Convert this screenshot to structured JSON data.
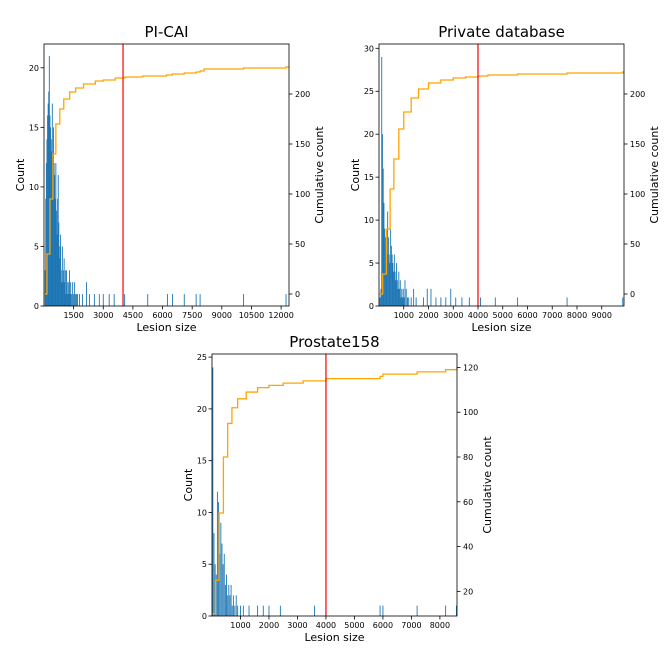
{
  "colors": {
    "bars": "#1f77b4",
    "cumulative": "#ffa500",
    "threshold": "#ff0000",
    "axis": "#000000"
  },
  "chart_data": [
    {
      "type": "bar",
      "title": "PI-CAI",
      "xlabel": "Lesion size",
      "ylabel": "Count",
      "y2label": "Cumulative count",
      "xlim": [
        0,
        12400
      ],
      "ylim": [
        0,
        22
      ],
      "y2lim": [
        -12,
        250
      ],
      "xticks": [
        1500,
        3000,
        4500,
        6000,
        7500,
        9000,
        10500,
        12000
      ],
      "xtick_labels": [
        "1500",
        "3000",
        "4500",
        "6000",
        "7500",
        "9000",
        "10500",
        "12000"
      ],
      "yticks": [
        0,
        5,
        10,
        15,
        20
      ],
      "ytick_labels": [
        "0",
        "5",
        "10",
        "15",
        "20"
      ],
      "y2ticks": [
        0,
        50,
        100,
        150,
        200
      ],
      "y2tick_labels": [
        "0",
        "50",
        "100",
        "150",
        "200"
      ],
      "threshold_x": 4000,
      "bars": [
        [
          60,
          3
        ],
        [
          90,
          9
        ],
        [
          120,
          12
        ],
        [
          150,
          14
        ],
        [
          180,
          16
        ],
        [
          210,
          17
        ],
        [
          240,
          18
        ],
        [
          270,
          21
        ],
        [
          300,
          16
        ],
        [
          330,
          15
        ],
        [
          360,
          13
        ],
        [
          390,
          14
        ],
        [
          420,
          17
        ],
        [
          450,
          10
        ],
        [
          480,
          15
        ],
        [
          510,
          12
        ],
        [
          540,
          11
        ],
        [
          570,
          9
        ],
        [
          600,
          12
        ],
        [
          630,
          8
        ],
        [
          660,
          6
        ],
        [
          690,
          9
        ],
        [
          720,
          11
        ],
        [
          750,
          7
        ],
        [
          780,
          4
        ],
        [
          810,
          5
        ],
        [
          840,
          6
        ],
        [
          870,
          3
        ],
        [
          900,
          2
        ],
        [
          930,
          5
        ],
        [
          960,
          2
        ],
        [
          990,
          3
        ],
        [
          1020,
          4
        ],
        [
          1050,
          2
        ],
        [
          1080,
          3
        ],
        [
          1110,
          1
        ],
        [
          1140,
          3
        ],
        [
          1170,
          2
        ],
        [
          1200,
          1
        ],
        [
          1230,
          2
        ],
        [
          1260,
          1
        ],
        [
          1290,
          3
        ],
        [
          1320,
          1
        ],
        [
          1350,
          2
        ],
        [
          1400,
          1
        ],
        [
          1450,
          2
        ],
        [
          1500,
          1
        ],
        [
          1550,
          2
        ],
        [
          1600,
          1
        ],
        [
          1650,
          1
        ],
        [
          1700,
          1
        ],
        [
          1800,
          1
        ],
        [
          1950,
          1
        ],
        [
          2150,
          2
        ],
        [
          2300,
          1
        ],
        [
          2550,
          1
        ],
        [
          2800,
          1
        ],
        [
          3000,
          1
        ],
        [
          3300,
          1
        ],
        [
          3550,
          1
        ],
        [
          4080,
          1
        ],
        [
          5250,
          1
        ],
        [
          6250,
          1
        ],
        [
          6500,
          1
        ],
        [
          7100,
          1
        ],
        [
          7700,
          1
        ],
        [
          7900,
          1
        ],
        [
          10100,
          1
        ],
        [
          12250,
          1
        ]
      ],
      "cumulative": [
        [
          0,
          0
        ],
        [
          150,
          40
        ],
        [
          300,
          95
        ],
        [
          450,
          140
        ],
        [
          600,
          170
        ],
        [
          800,
          185
        ],
        [
          1000,
          195
        ],
        [
          1300,
          202
        ],
        [
          1600,
          206
        ],
        [
          2000,
          210
        ],
        [
          2600,
          213
        ],
        [
          3000,
          214
        ],
        [
          3600,
          216
        ],
        [
          4100,
          217
        ],
        [
          5000,
          218
        ],
        [
          6200,
          219
        ],
        [
          6500,
          220
        ],
        [
          7100,
          221
        ],
        [
          7700,
          222
        ],
        [
          7900,
          223
        ],
        [
          8100,
          225
        ],
        [
          10100,
          226
        ],
        [
          12250,
          227
        ],
        [
          12400,
          227
        ]
      ]
    },
    {
      "type": "bar",
      "title": "Private database",
      "xlabel": "Lesion size",
      "ylabel": "Count",
      "y2label": "Cumulative count",
      "xlim": [
        0,
        9900
      ],
      "ylim": [
        0,
        30.5
      ],
      "y2lim": [
        -12,
        250
      ],
      "xticks": [
        1000,
        2000,
        3000,
        4000,
        5000,
        6000,
        7000,
        8000,
        9000
      ],
      "xtick_labels": [
        "1000",
        "2000",
        "3000",
        "4000",
        "5000",
        "6000",
        "7000",
        "8000",
        "9000"
      ],
      "yticks": [
        0,
        5,
        10,
        15,
        20,
        25,
        30
      ],
      "ytick_labels": [
        "0",
        "5",
        "10",
        "15",
        "20",
        "25",
        "30"
      ],
      "y2ticks": [
        0,
        50,
        100,
        150,
        200
      ],
      "y2tick_labels": [
        "0",
        "50",
        "100",
        "150",
        "200"
      ],
      "threshold_x": 4000,
      "bars": [
        [
          40,
          1
        ],
        [
          80,
          2
        ],
        [
          110,
          29
        ],
        [
          140,
          20
        ],
        [
          170,
          16
        ],
        [
          200,
          12
        ],
        [
          230,
          9
        ],
        [
          260,
          8
        ],
        [
          290,
          7
        ],
        [
          320,
          6
        ],
        [
          350,
          11
        ],
        [
          380,
          8
        ],
        [
          410,
          6
        ],
        [
          440,
          5
        ],
        [
          470,
          9
        ],
        [
          500,
          7
        ],
        [
          530,
          6
        ],
        [
          560,
          5
        ],
        [
          590,
          4
        ],
        [
          620,
          6
        ],
        [
          650,
          4
        ],
        [
          680,
          3
        ],
        [
          710,
          5
        ],
        [
          740,
          3
        ],
        [
          770,
          2
        ],
        [
          800,
          4
        ],
        [
          830,
          2
        ],
        [
          860,
          3
        ],
        [
          890,
          1
        ],
        [
          920,
          2
        ],
        [
          950,
          1
        ],
        [
          980,
          2
        ],
        [
          1010,
          1
        ],
        [
          1050,
          3
        ],
        [
          1100,
          2
        ],
        [
          1150,
          1
        ],
        [
          1200,
          1
        ],
        [
          1300,
          1
        ],
        [
          1400,
          2
        ],
        [
          1500,
          1
        ],
        [
          1800,
          1
        ],
        [
          1950,
          2
        ],
        [
          2100,
          2
        ],
        [
          2300,
          1
        ],
        [
          2500,
          1
        ],
        [
          2700,
          1
        ],
        [
          2900,
          2
        ],
        [
          3100,
          1
        ],
        [
          3350,
          1
        ],
        [
          3650,
          1
        ],
        [
          4100,
          1
        ],
        [
          4700,
          1
        ],
        [
          5600,
          1
        ],
        [
          7600,
          1
        ],
        [
          9850,
          1
        ]
      ],
      "cumulative": [
        [
          0,
          0
        ],
        [
          150,
          20
        ],
        [
          300,
          65
        ],
        [
          450,
          105
        ],
        [
          600,
          135
        ],
        [
          800,
          165
        ],
        [
          1000,
          182
        ],
        [
          1300,
          196
        ],
        [
          1600,
          205
        ],
        [
          2000,
          211
        ],
        [
          2500,
          214
        ],
        [
          3000,
          216
        ],
        [
          3500,
          217
        ],
        [
          4000,
          218
        ],
        [
          4400,
          219
        ],
        [
          5600,
          220
        ],
        [
          7600,
          221
        ],
        [
          9850,
          222
        ],
        [
          9900,
          222
        ]
      ]
    },
    {
      "type": "bar",
      "title": "Prostate158",
      "xlabel": "Lesion size",
      "ylabel": "Count",
      "y2label": "Cumulative count",
      "xlim": [
        0,
        8600
      ],
      "ylim": [
        0,
        25.3
      ],
      "y2lim": [
        9,
        126
      ],
      "xticks": [
        1000,
        2000,
        3000,
        4000,
        5000,
        6000,
        7000,
        8000
      ],
      "xtick_labels": [
        "1000",
        "2000",
        "3000",
        "4000",
        "5000",
        "6000",
        "7000",
        "8000"
      ],
      "yticks": [
        0,
        5,
        10,
        15,
        20,
        25
      ],
      "ytick_labels": [
        "0",
        "5",
        "10",
        "15",
        "20",
        "25"
      ],
      "y2ticks": [
        20,
        40,
        60,
        80,
        100,
        120
      ],
      "y2tick_labels": [
        "20",
        "40",
        "60",
        "80",
        "100",
        "120"
      ],
      "threshold_x": 4000,
      "bars": [
        [
          30,
          24
        ],
        [
          70,
          8
        ],
        [
          110,
          5
        ],
        [
          150,
          4
        ],
        [
          190,
          12
        ],
        [
          230,
          11
        ],
        [
          270,
          6
        ],
        [
          310,
          9
        ],
        [
          350,
          7
        ],
        [
          390,
          5
        ],
        [
          430,
          6
        ],
        [
          470,
          3
        ],
        [
          510,
          4
        ],
        [
          550,
          2
        ],
        [
          590,
          3
        ],
        [
          630,
          2
        ],
        [
          670,
          3
        ],
        [
          710,
          1
        ],
        [
          750,
          2
        ],
        [
          800,
          1
        ],
        [
          850,
          2
        ],
        [
          900,
          1
        ],
        [
          1000,
          1
        ],
        [
          1100,
          1
        ],
        [
          1300,
          1
        ],
        [
          1600,
          1
        ],
        [
          1800,
          1
        ],
        [
          2000,
          1
        ],
        [
          2400,
          1
        ],
        [
          3600,
          1
        ],
        [
          5900,
          1
        ],
        [
          6000,
          1
        ],
        [
          7200,
          1
        ],
        [
          8200,
          1
        ],
        [
          8580,
          1
        ]
      ],
      "cumulative": [
        [
          0,
          10
        ],
        [
          120,
          25
        ],
        [
          250,
          55
        ],
        [
          400,
          80
        ],
        [
          550,
          95
        ],
        [
          700,
          102
        ],
        [
          900,
          106
        ],
        [
          1200,
          109
        ],
        [
          1600,
          111
        ],
        [
          2000,
          112
        ],
        [
          2500,
          113
        ],
        [
          3200,
          114
        ],
        [
          3600,
          114
        ],
        [
          4000,
          115
        ],
        [
          5900,
          116
        ],
        [
          6000,
          117
        ],
        [
          7200,
          118
        ],
        [
          8200,
          119
        ],
        [
          8600,
          120
        ]
      ]
    }
  ]
}
